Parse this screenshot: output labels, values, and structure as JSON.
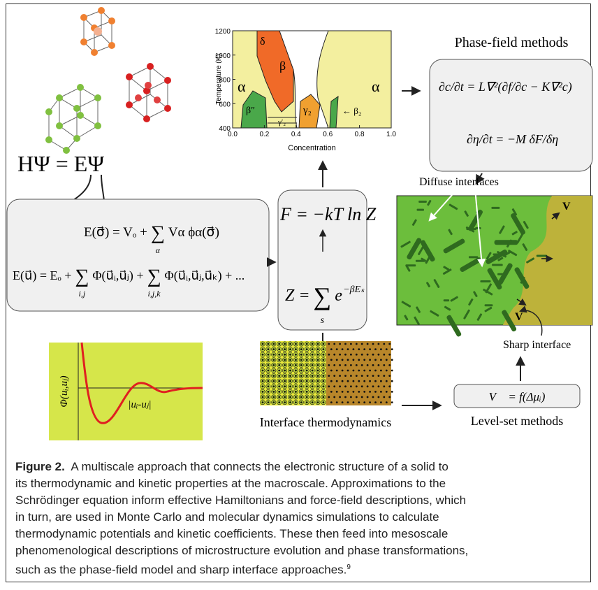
{
  "schrodinger_equation": "HΨ = EΨ",
  "cluster_expansion": {
    "left": "E(σ⃗) = Vₒ +",
    "sum": "∑",
    "index": "α",
    "right": "Vα ϕα(σ⃗)"
  },
  "force_field": {
    "left": "E(u⃗) = Eₒ +",
    "sum1": "∑",
    "index1": "i,j",
    "term1": "Φ(u⃗ᵢ,u⃗ⱼ) +",
    "sum2": "∑",
    "index2": "i,j,k",
    "term2": "Φ(u⃗ᵢ,u⃗ⱼ,u⃗ₖ) + ..."
  },
  "free_energy": "F = −kT ln Z",
  "partition_function": {
    "left": "Z =",
    "sum": "∑",
    "index": "s",
    "base": "e",
    "exponent": "−βEₛ"
  },
  "phase_diagram": {
    "ylabel": "Temperature (K)",
    "xlabel": "Concentration",
    "ylim": [
      400,
      1200
    ],
    "yticks": [
      400,
      600,
      800,
      1000,
      1200
    ],
    "xlim": [
      0,
      1
    ],
    "xticks": [
      {
        "value": 0,
        "label": "0.0"
      },
      {
        "value": 0.2,
        "label": "0.2"
      },
      {
        "value": 0.4,
        "label": "0.4"
      },
      {
        "value": 0.6,
        "label": "0.6"
      },
      {
        "value": 0.8,
        "label": "0.8"
      },
      {
        "value": 1,
        "label": "1.0"
      }
    ],
    "regions": [
      "α",
      "δ",
      "β",
      "β″",
      "γ₂",
      "γ′₂",
      "← β₂",
      "α"
    ]
  },
  "phase_field": {
    "title": "Phase-field methods",
    "cahn_hilliard": "∂c/∂t = L∇²(∂f/∂c − K∇²c)",
    "allen_cahn": "∂η/∂t = −M δF/δη"
  },
  "diffuse_interfaces": "Diffuse interfaces",
  "sharp_interface": "Sharp interface",
  "velocity_labels": [
    "V⃗",
    "V⃗"
  ],
  "potential_plot": {
    "ylabel": "Φ(uᵢ,uⱼ)",
    "xlabel": "|uᵢ-uⱼ|"
  },
  "interface_thermodynamics": "Interface thermodynamics",
  "level_set": {
    "equation": "V⃗ = f(Δμᵢ)",
    "title": "Level-set methods"
  },
  "caption": {
    "label": "Figure 2.",
    "lines": [
      "A multiscale approach that connects the electronic structure of a solid to",
      "its thermodynamic and kinetic properties at the macroscale. Approximations to the",
      "Schrödinger equation inform effective Hamiltonians and force-field descriptions, which",
      "in turn, are used in Monte Carlo and molecular dynamics simulations to calculate",
      "thermodynamic potentials and kinetic coefficients. These then feed into mesoscale",
      "phenomenological descriptions of microstructure evolution and phase transformations,",
      "such as the phase-field model and sharp interface approaches."
    ],
    "ref": "9"
  }
}
